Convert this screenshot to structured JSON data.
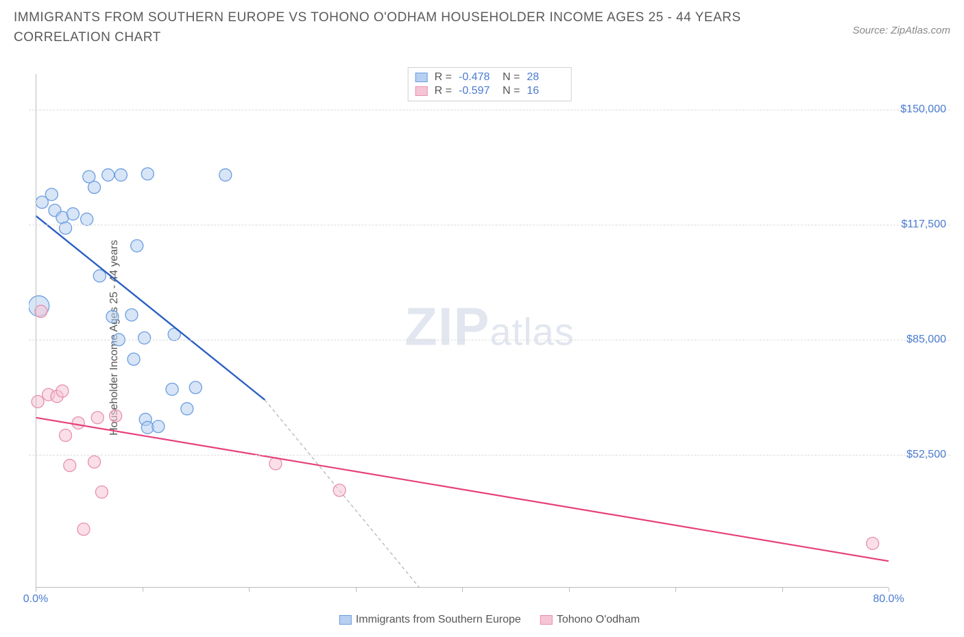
{
  "title": "IMMIGRANTS FROM SOUTHERN EUROPE VS TOHONO O'ODHAM HOUSEHOLDER INCOME AGES 25 - 44 YEARS CORRELATION CHART",
  "source": "Source: ZipAtlas.com",
  "watermark_main": "ZIP",
  "watermark_sub": "atlas",
  "chart": {
    "type": "scatter",
    "background_color": "#ffffff",
    "grid_color": "#dcdcdc",
    "axis_color": "#bbbbbb",
    "y_label": "Householder Income Ages 25 - 44 years",
    "y_label_color": "#555555",
    "y_label_fontsize": 16,
    "tick_label_color": "#4a7bd0",
    "tick_label_fontsize": 16,
    "xlim": [
      0,
      80
    ],
    "ylim": [
      15000,
      160000
    ],
    "x_ticks": [
      0,
      10,
      20,
      30,
      40,
      50,
      60,
      70,
      80
    ],
    "x_tick_labels": {
      "0": "0.0%",
      "80": "80.0%"
    },
    "y_ticks": [
      52500,
      85000,
      117500,
      150000
    ],
    "y_tick_labels": {
      "52500": "$52,500",
      "85000": "$85,000",
      "117500": "$117,500",
      "150000": "$150,000"
    },
    "legend_top": [
      {
        "swatch_fill": "#b7cff0",
        "swatch_stroke": "#6a9de0",
        "r_label": "R =",
        "r_value": "-0.478",
        "n_label": "N =",
        "n_value": "28"
      },
      {
        "swatch_fill": "#f6c5d5",
        "swatch_stroke": "#e88fb0",
        "r_label": "R =",
        "r_value": "-0.597",
        "n_label": "N =",
        "n_value": "16"
      }
    ],
    "legend_bottom": [
      {
        "swatch_fill": "#b7cff0",
        "swatch_stroke": "#6a9de0",
        "label": "Immigrants from Southern Europe"
      },
      {
        "swatch_fill": "#f6c5d5",
        "swatch_stroke": "#e88fb0",
        "label": "Tohono O'odham"
      }
    ],
    "series": [
      {
        "name": "Immigrants from Southern Europe",
        "marker_fill": "#b7cff0",
        "marker_stroke": "#6a9de0",
        "marker_fill_opacity": 0.55,
        "marker_radius": 9,
        "trend_line_color": "#2b5fc1",
        "trend_line_width": 2.4,
        "trend_solid": {
          "x1": 0,
          "y1": 120000,
          "x2": 21.5,
          "y2": 68000
        },
        "trend_dashed": {
          "x1": 21.5,
          "y1": 68000,
          "x2": 36,
          "y2": 15000
        },
        "points": [
          {
            "x": 0.3,
            "y": 94500,
            "r": 15
          },
          {
            "x": 0.6,
            "y": 123800
          },
          {
            "x": 1.5,
            "y": 126000
          },
          {
            "x": 1.8,
            "y": 121500
          },
          {
            "x": 2.5,
            "y": 119500
          },
          {
            "x": 2.8,
            "y": 116500
          },
          {
            "x": 3.5,
            "y": 120500
          },
          {
            "x": 4.8,
            "y": 119000
          },
          {
            "x": 5.0,
            "y": 131000
          },
          {
            "x": 5.5,
            "y": 128000
          },
          {
            "x": 6.8,
            "y": 131500
          },
          {
            "x": 6.0,
            "y": 103000
          },
          {
            "x": 8.0,
            "y": 131500
          },
          {
            "x": 9.5,
            "y": 111500
          },
          {
            "x": 10.5,
            "y": 131800
          },
          {
            "x": 7.2,
            "y": 91500
          },
          {
            "x": 9.0,
            "y": 92000
          },
          {
            "x": 7.8,
            "y": 85000
          },
          {
            "x": 10.2,
            "y": 85500
          },
          {
            "x": 9.2,
            "y": 79500
          },
          {
            "x": 10.3,
            "y": 62500
          },
          {
            "x": 10.5,
            "y": 60200
          },
          {
            "x": 12.8,
            "y": 71000
          },
          {
            "x": 13.0,
            "y": 86500
          },
          {
            "x": 15.0,
            "y": 71500
          },
          {
            "x": 14.2,
            "y": 65500
          },
          {
            "x": 17.8,
            "y": 131500
          },
          {
            "x": 11.5,
            "y": 60500
          }
        ]
      },
      {
        "name": "Tohono O'odham",
        "marker_fill": "#f6c5d5",
        "marker_stroke": "#e88fb0",
        "marker_fill_opacity": 0.55,
        "marker_radius": 9,
        "trend_line_color": "#e63f7b",
        "trend_line_width": 2.2,
        "trend_solid": {
          "x1": 0,
          "y1": 63000,
          "x2": 80,
          "y2": 22500
        },
        "points": [
          {
            "x": 0.5,
            "y": 93000
          },
          {
            "x": 0.2,
            "y": 67500
          },
          {
            "x": 1.2,
            "y": 69500
          },
          {
            "x": 2.0,
            "y": 69000
          },
          {
            "x": 2.5,
            "y": 70500
          },
          {
            "x": 2.8,
            "y": 58000
          },
          {
            "x": 3.2,
            "y": 49500
          },
          {
            "x": 4.0,
            "y": 61500
          },
          {
            "x": 4.5,
            "y": 31500
          },
          {
            "x": 5.8,
            "y": 63000
          },
          {
            "x": 5.5,
            "y": 50500
          },
          {
            "x": 6.2,
            "y": 42000
          },
          {
            "x": 7.5,
            "y": 63500
          },
          {
            "x": 22.5,
            "y": 50000
          },
          {
            "x": 28.5,
            "y": 42500
          },
          {
            "x": 78.5,
            "y": 27500
          }
        ]
      }
    ]
  }
}
